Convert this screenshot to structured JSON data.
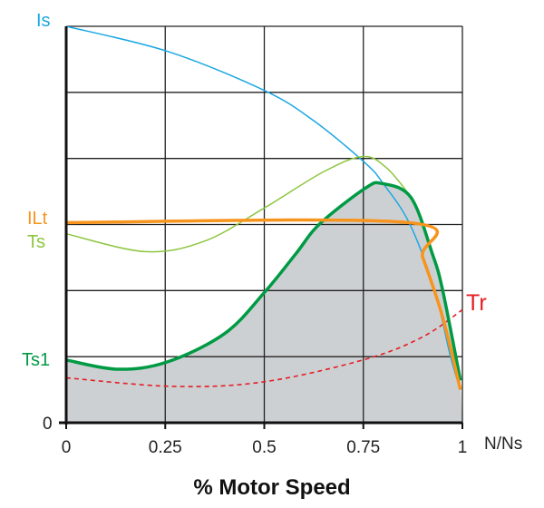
{
  "chart_data": {
    "type": "line",
    "xlabel": "% Motor Speed",
    "x_unit_label": "N/Ns",
    "xlim": [
      0,
      1
    ],
    "ylim": [
      0,
      6
    ],
    "x_ticks": [
      "0",
      "0.25",
      "0.5",
      "0.75",
      "1"
    ],
    "y_ticks": [
      "0"
    ],
    "grid": true,
    "series": [
      {
        "name": "Is",
        "color": "#1ba7e1",
        "style": "solid",
        "points": [
          [
            0,
            6.0
          ],
          [
            0.256,
            5.62
          ],
          [
            0.5,
            5.03
          ],
          [
            0.625,
            4.57
          ],
          [
            0.755,
            3.93
          ],
          [
            0.8,
            3.62
          ],
          [
            0.867,
            3.01
          ],
          [
            0.93,
            2.0
          ],
          [
            0.97,
            1.0
          ],
          [
            0.995,
            0.5
          ]
        ]
      },
      {
        "name": "ILt",
        "color": "#f7941d",
        "style": "solid",
        "points": [
          [
            0,
            3.03
          ],
          [
            0.863,
            3.03
          ],
          [
            0.9,
            2.5
          ],
          [
            0.95,
            1.6
          ],
          [
            0.995,
            0.5
          ]
        ]
      },
      {
        "name": "Ts",
        "color": "#8dc63f",
        "style": "solid",
        "points": [
          [
            0,
            2.86
          ],
          [
            0.2,
            2.59
          ],
          [
            0.35,
            2.75
          ],
          [
            0.5,
            3.25
          ],
          [
            0.65,
            3.8
          ],
          [
            0.75,
            4.03
          ],
          [
            0.81,
            3.85
          ],
          [
            0.87,
            3.42
          ]
        ]
      },
      {
        "name": "Ts1",
        "color": "#009a44",
        "style": "solid",
        "filled": true,
        "fill": "#cdd0d3",
        "points": [
          [
            0,
            0.95
          ],
          [
            0.13,
            0.81
          ],
          [
            0.255,
            0.92
          ],
          [
            0.4,
            1.35
          ],
          [
            0.5,
            1.97
          ],
          [
            0.58,
            2.56
          ],
          [
            0.64,
            3.01
          ],
          [
            0.755,
            3.55
          ],
          [
            0.797,
            3.62
          ],
          [
            0.87,
            3.41
          ],
          [
            0.924,
            2.56
          ],
          [
            0.95,
            2.01
          ],
          [
            0.995,
            0.64
          ]
        ]
      },
      {
        "name": "Tr",
        "color": "#e31e24",
        "style": "dashed",
        "points": [
          [
            0,
            0.68
          ],
          [
            0.27,
            0.55
          ],
          [
            0.5,
            0.62
          ],
          [
            0.755,
            0.96
          ],
          [
            0.9,
            1.3
          ],
          [
            1.0,
            1.71
          ]
        ]
      }
    ]
  }
}
